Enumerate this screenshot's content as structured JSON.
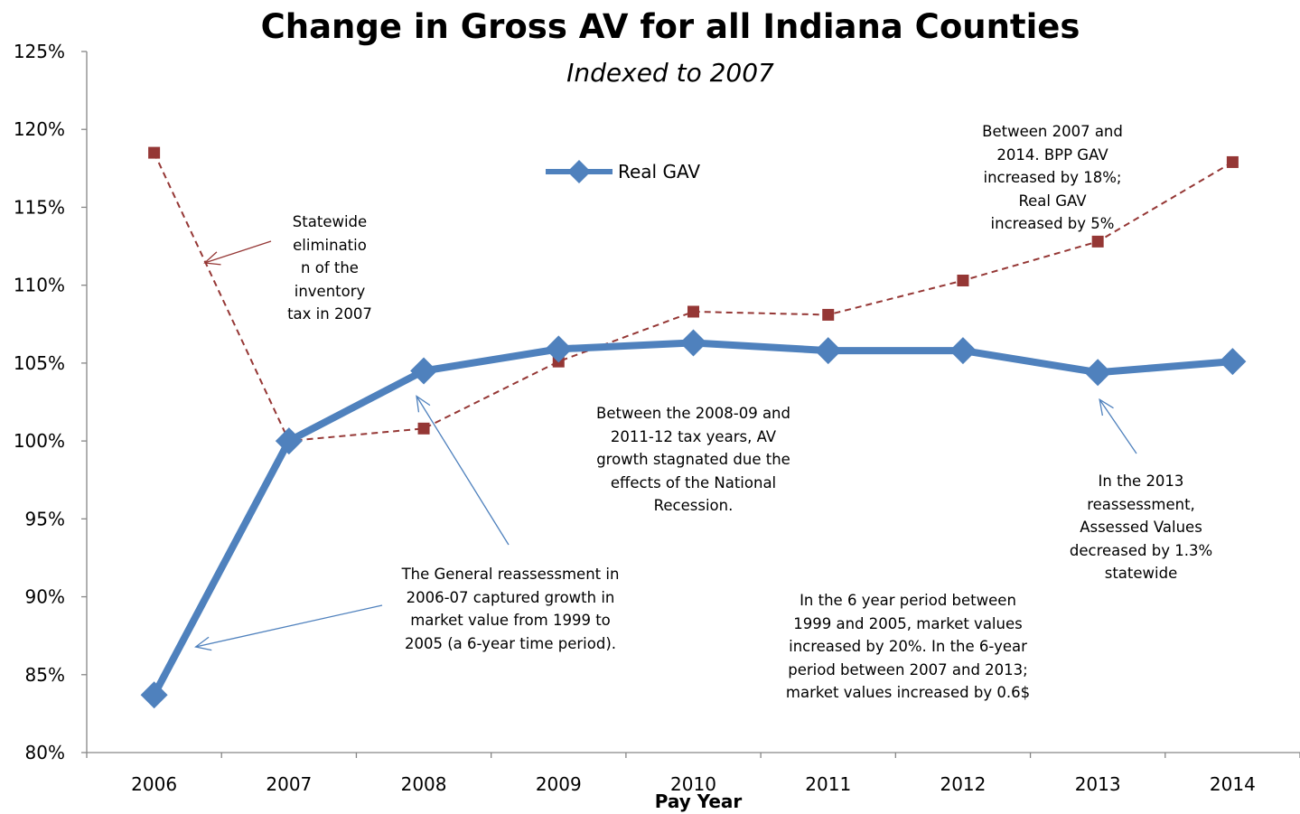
{
  "chart_data": {
    "type": "line",
    "title": "Change in Gross AV for all Indiana Counties",
    "subtitle": "Indexed to 2007",
    "xlabel": "Pay Year",
    "ylabel": "",
    "categories": [
      "2006",
      "2007",
      "2008",
      "2009",
      "2010",
      "2011",
      "2012",
      "2013",
      "2014"
    ],
    "ylim": [
      80,
      125
    ],
    "yticks": [
      80,
      85,
      90,
      95,
      100,
      105,
      110,
      115,
      120,
      125
    ],
    "ytick_labels": [
      "80%",
      "85%",
      "90%",
      "95%",
      "100%",
      "105%",
      "110%",
      "115%",
      "120%",
      "125%"
    ],
    "grid": false,
    "legend_position": "top-center",
    "series": [
      {
        "name": "Real GAV",
        "values": [
          83.7,
          100,
          104.5,
          105.9,
          106.3,
          105.8,
          105.8,
          104.4,
          105.1
        ],
        "color": "#4f81bd",
        "style": "solid",
        "marker": "diamond"
      },
      {
        "name": "",
        "values": [
          118.5,
          100,
          100.8,
          105.1,
          108.3,
          108.1,
          110.3,
          112.8,
          117.9
        ],
        "color": "#953735",
        "style": "dashed",
        "marker": "square"
      }
    ],
    "annotations": [
      {
        "id": "inventory",
        "text": "Statewide\neliminatio\nn of the\ninventory\ntax in 2007",
        "arrow_color": "#953735"
      },
      {
        "id": "reassess0607",
        "text": "The General reassessment in\n2006-07 captured growth in\nmarket value from 1999 to\n2005 (a 6-year time period).",
        "arrow_color": "#4f81bd"
      },
      {
        "id": "recession",
        "text": "Between the 2008-09 and\n2011-12 tax years, AV\ngrowth stagnated due the\neffects of the National\nRecession.",
        "arrow_color": ""
      },
      {
        "id": "sixyear",
        "text": "In the 6 year period between\n1999 and 2005, market values\nincreased by 20%.  In the 6-year\nperiod between 2007 and 2013;\nmarket values increased by 0.6$",
        "arrow_color": ""
      },
      {
        "id": "bpp",
        "text": "Between 2007 and\n2014. BPP GAV\nincreased by 18%;\nReal GAV\nincreased by 5%",
        "arrow_color": ""
      },
      {
        "id": "reassess2013",
        "text": "In the 2013\nreassessment,\nAssessed Values\ndecreased by 1.3%\nstatewide",
        "arrow_color": "#4f81bd"
      }
    ]
  }
}
